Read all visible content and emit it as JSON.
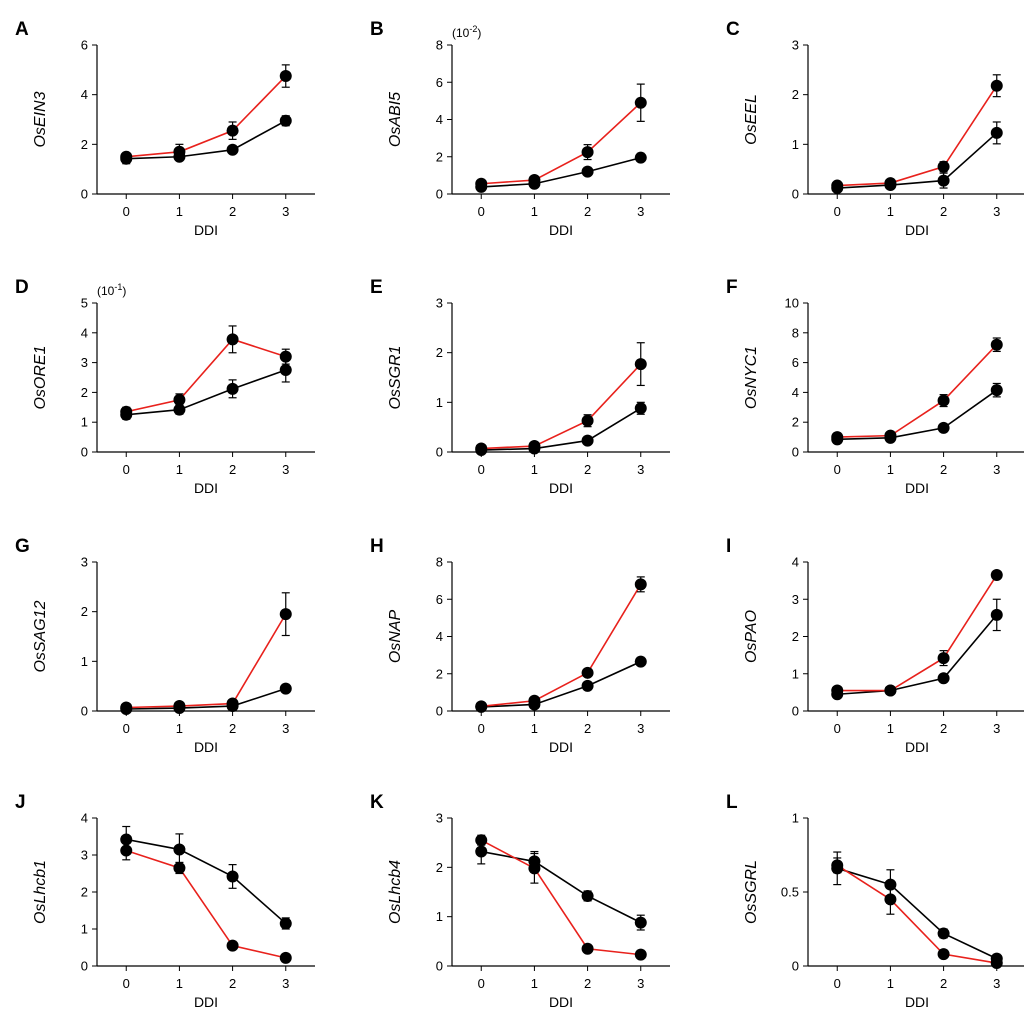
{
  "chart_data": [
    {
      "type": "line",
      "letter": "A",
      "ylabel": "OsEIN3",
      "xlabel": "DDI",
      "scale": "",
      "categories": [
        "0",
        "1",
        "2",
        "3"
      ],
      "ylim": [
        0,
        6
      ],
      "yticks": [
        "0",
        "2",
        "4",
        "6"
      ],
      "series": [
        {
          "name": "red",
          "color": "#e8211c",
          "values": [
            1.5,
            1.7,
            2.55,
            4.75
          ],
          "err": [
            0.15,
            0.3,
            0.35,
            0.45
          ]
        },
        {
          "name": "black",
          "color": "#000000",
          "values": [
            1.42,
            1.5,
            1.78,
            2.95
          ],
          "err": [
            0.2,
            0.15,
            0.1,
            0.2
          ]
        }
      ]
    },
    {
      "type": "line",
      "letter": "B",
      "ylabel": "OsABI5",
      "xlabel": "DDI",
      "scale": "(10-2)",
      "scale_base": "(10",
      "scale_exp": "-2",
      "scale_close": ")",
      "categories": [
        "0",
        "1",
        "2",
        "3"
      ],
      "ylim": [
        0,
        8
      ],
      "yticks": [
        "0",
        "2",
        "4",
        "6",
        "8"
      ],
      "series": [
        {
          "name": "red",
          "color": "#e8211c",
          "values": [
            0.55,
            0.75,
            2.25,
            4.9
          ],
          "err": [
            0.1,
            0.1,
            0.4,
            1.0
          ]
        },
        {
          "name": "black",
          "color": "#000000",
          "values": [
            0.38,
            0.55,
            1.2,
            1.95
          ],
          "err": [
            0.1,
            0.1,
            0.15,
            0.15
          ]
        }
      ]
    },
    {
      "type": "line",
      "letter": "C",
      "ylabel": "OsEEL",
      "xlabel": "DDI",
      "scale": "",
      "categories": [
        "0",
        "1",
        "2",
        "3"
      ],
      "ylim": [
        0,
        3
      ],
      "yticks": [
        "0",
        "1",
        "2",
        "3"
      ],
      "series": [
        {
          "name": "red",
          "color": "#e8211c",
          "values": [
            0.17,
            0.22,
            0.55,
            2.18
          ],
          "err": [
            0.05,
            0.05,
            0.1,
            0.22
          ]
        },
        {
          "name": "black",
          "color": "#000000",
          "values": [
            0.12,
            0.18,
            0.27,
            1.23
          ],
          "err": [
            0.05,
            0.05,
            0.15,
            0.22
          ]
        }
      ]
    },
    {
      "type": "line",
      "letter": "D",
      "ylabel": "OsORE1",
      "xlabel": "DDI",
      "scale": "(10-1)",
      "scale_base": "(10",
      "scale_exp": "-1",
      "scale_close": ")",
      "categories": [
        "0",
        "1",
        "2",
        "3"
      ],
      "ylim": [
        0,
        5
      ],
      "yticks": [
        "0",
        "1",
        "2",
        "3",
        "4",
        "5"
      ],
      "series": [
        {
          "name": "red",
          "color": "#e8211c",
          "values": [
            1.35,
            1.75,
            3.78,
            3.2
          ],
          "err": [
            0.15,
            0.2,
            0.45,
            0.25
          ]
        },
        {
          "name": "black",
          "color": "#000000",
          "values": [
            1.25,
            1.42,
            2.12,
            2.75
          ],
          "err": [
            0.15,
            0.15,
            0.3,
            0.4
          ]
        }
      ]
    },
    {
      "type": "line",
      "letter": "E",
      "ylabel": "OsSGR1",
      "xlabel": "DDI",
      "scale": "",
      "categories": [
        "0",
        "1",
        "2",
        "3"
      ],
      "ylim": [
        0,
        3
      ],
      "yticks": [
        "0",
        "1",
        "2",
        "3"
      ],
      "series": [
        {
          "name": "red",
          "color": "#e8211c",
          "values": [
            0.07,
            0.12,
            0.63,
            1.77
          ],
          "err": [
            0.03,
            0.03,
            0.12,
            0.43
          ]
        },
        {
          "name": "black",
          "color": "#000000",
          "values": [
            0.04,
            0.07,
            0.23,
            0.88
          ],
          "err": [
            0.02,
            0.02,
            0.05,
            0.12
          ]
        }
      ]
    },
    {
      "type": "line",
      "letter": "F",
      "ylabel": "OsNYC1",
      "xlabel": "DDI",
      "scale": "",
      "categories": [
        "0",
        "1",
        "2",
        "3"
      ],
      "ylim": [
        0,
        10
      ],
      "yticks": [
        "0",
        "2",
        "4",
        "6",
        "8",
        "10"
      ],
      "series": [
        {
          "name": "red",
          "color": "#e8211c",
          "values": [
            1.0,
            1.1,
            3.45,
            7.2
          ],
          "err": [
            0.15,
            0.2,
            0.4,
            0.45
          ]
        },
        {
          "name": "black",
          "color": "#000000",
          "values": [
            0.85,
            0.95,
            1.62,
            4.15
          ],
          "err": [
            0.1,
            0.1,
            0.15,
            0.45
          ]
        }
      ]
    },
    {
      "type": "line",
      "letter": "G",
      "ylabel": "OsSAG12",
      "xlabel": "DDI",
      "scale": "",
      "categories": [
        "0",
        "1",
        "2",
        "3"
      ],
      "ylim": [
        0,
        3
      ],
      "yticks": [
        "0",
        "1",
        "2",
        "3"
      ],
      "series": [
        {
          "name": "red",
          "color": "#e8211c",
          "values": [
            0.07,
            0.1,
            0.15,
            1.95
          ],
          "err": [
            0.02,
            0.02,
            0.03,
            0.43
          ]
        },
        {
          "name": "black",
          "color": "#000000",
          "values": [
            0.04,
            0.06,
            0.1,
            0.45
          ],
          "err": [
            0.02,
            0.02,
            0.02,
            0.06
          ]
        }
      ]
    },
    {
      "type": "line",
      "letter": "H",
      "ylabel": "OsNAP",
      "xlabel": "DDI",
      "scale": "",
      "categories": [
        "0",
        "1",
        "2",
        "3"
      ],
      "ylim": [
        0,
        8
      ],
      "yticks": [
        "0",
        "2",
        "4",
        "6",
        "8"
      ],
      "series": [
        {
          "name": "red",
          "color": "#e8211c",
          "values": [
            0.25,
            0.55,
            2.05,
            6.8
          ],
          "err": [
            0.05,
            0.1,
            0.15,
            0.4
          ]
        },
        {
          "name": "black",
          "color": "#000000",
          "values": [
            0.22,
            0.35,
            1.35,
            2.65
          ],
          "err": [
            0.05,
            0.1,
            0.15,
            0.12
          ]
        }
      ]
    },
    {
      "type": "line",
      "letter": "I",
      "ylabel": "OsPAO",
      "xlabel": "DDI",
      "scale": "",
      "categories": [
        "0",
        "1",
        "2",
        "3"
      ],
      "ylim": [
        0,
        4
      ],
      "yticks": [
        "0",
        "1",
        "2",
        "3",
        "4"
      ],
      "series": [
        {
          "name": "red",
          "color": "#e8211c",
          "values": [
            0.55,
            0.55,
            1.42,
            3.65
          ],
          "err": [
            0.1,
            0.05,
            0.2,
            0.1
          ]
        },
        {
          "name": "black",
          "color": "#000000",
          "values": [
            0.45,
            0.55,
            0.88,
            2.58
          ],
          "err": [
            0.1,
            0.05,
            0.1,
            0.42
          ]
        }
      ]
    },
    {
      "type": "line",
      "letter": "J",
      "ylabel": "OsLhcb1",
      "xlabel": "DDI",
      "scale": "",
      "categories": [
        "0",
        "1",
        "2",
        "3"
      ],
      "ylim": [
        0,
        4
      ],
      "yticks": [
        "0",
        "1",
        "2",
        "3",
        "4"
      ],
      "series": [
        {
          "name": "red",
          "color": "#e8211c",
          "values": [
            3.12,
            2.65,
            0.55,
            0.22
          ],
          "err": [
            0.25,
            0.15,
            0.08,
            0.04
          ]
        },
        {
          "name": "black",
          "color": "#000000",
          "values": [
            3.42,
            3.15,
            2.42,
            1.15
          ],
          "err": [
            0.35,
            0.42,
            0.32,
            0.15
          ]
        }
      ]
    },
    {
      "type": "line",
      "letter": "K",
      "ylabel": "OsLhcb4",
      "xlabel": "DDI",
      "scale": "",
      "categories": [
        "0",
        "1",
        "2",
        "3"
      ],
      "ylim": [
        0,
        3
      ],
      "yticks": [
        "0",
        "1",
        "2",
        "3"
      ],
      "series": [
        {
          "name": "red",
          "color": "#e8211c",
          "values": [
            2.55,
            1.98,
            0.35,
            0.23
          ],
          "err": [
            0.1,
            0.3,
            0.04,
            0.04
          ]
        },
        {
          "name": "black",
          "color": "#000000",
          "values": [
            2.32,
            2.12,
            1.42,
            0.88
          ],
          "err": [
            0.25,
            0.2,
            0.1,
            0.15
          ]
        }
      ]
    },
    {
      "type": "line",
      "letter": "L",
      "ylabel": "OsSGRL",
      "xlabel": "DDI",
      "scale": "",
      "categories": [
        "0",
        "1",
        "2",
        "3"
      ],
      "ylim": [
        0,
        1
      ],
      "yticks": [
        "0",
        "0.5",
        "1"
      ],
      "series": [
        {
          "name": "red",
          "color": "#e8211c",
          "values": [
            0.68,
            0.45,
            0.08,
            0.02
          ],
          "err": [
            0.05,
            0.1,
            0.02,
            0.01
          ]
        },
        {
          "name": "black",
          "color": "#000000",
          "values": [
            0.66,
            0.55,
            0.22,
            0.05
          ],
          "err": [
            0.11,
            0.1,
            0.03,
            0.02
          ]
        }
      ]
    }
  ]
}
